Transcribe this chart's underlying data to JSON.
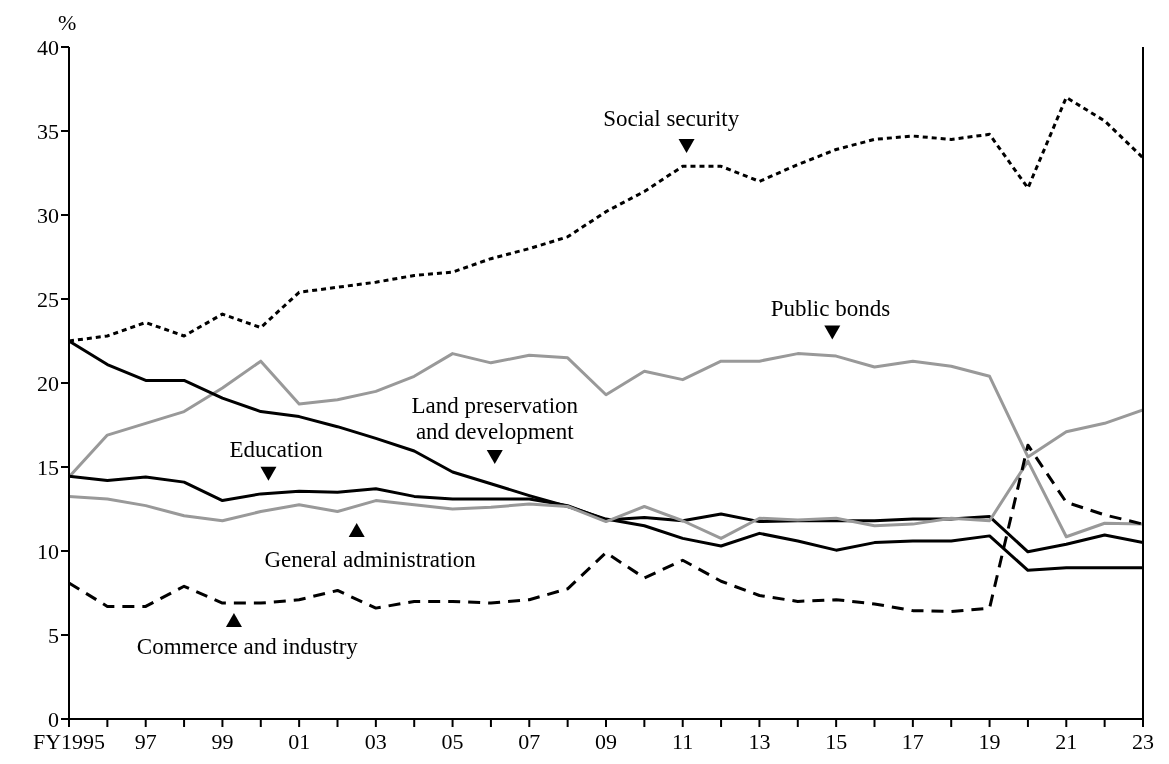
{
  "chart_data": {
    "type": "line",
    "ylabel": "%",
    "marker": "none",
    "grid": false,
    "legend": false,
    "x": [
      1995,
      1996,
      1997,
      1998,
      1999,
      2000,
      2001,
      2002,
      2003,
      2004,
      2005,
      2006,
      2007,
      2008,
      2009,
      2010,
      2011,
      2012,
      2013,
      2014,
      2015,
      2016,
      2017,
      2018,
      2019,
      2020,
      2021,
      2022,
      2023
    ],
    "xlim": [
      1995,
      2023
    ],
    "xticks": [
      {
        "value": 1995,
        "label": "FY1995"
      },
      {
        "value": 1996,
        "label": null
      },
      {
        "value": 1997,
        "label": "97"
      },
      {
        "value": 1998,
        "label": null
      },
      {
        "value": 1999,
        "label": "99"
      },
      {
        "value": 2000,
        "label": null
      },
      {
        "value": 2001,
        "label": "01"
      },
      {
        "value": 2002,
        "label": null
      },
      {
        "value": 2003,
        "label": "03"
      },
      {
        "value": 2004,
        "label": null
      },
      {
        "value": 2005,
        "label": "05"
      },
      {
        "value": 2006,
        "label": null
      },
      {
        "value": 2007,
        "label": "07"
      },
      {
        "value": 2008,
        "label": null
      },
      {
        "value": 2009,
        "label": "09"
      },
      {
        "value": 2010,
        "label": null
      },
      {
        "value": 2011,
        "label": "11"
      },
      {
        "value": 2012,
        "label": null
      },
      {
        "value": 2013,
        "label": "13"
      },
      {
        "value": 2014,
        "label": null
      },
      {
        "value": 2015,
        "label": "15"
      },
      {
        "value": 2016,
        "label": null
      },
      {
        "value": 2017,
        "label": "17"
      },
      {
        "value": 2018,
        "label": null
      },
      {
        "value": 2019,
        "label": "19"
      },
      {
        "value": 2020,
        "label": null
      },
      {
        "value": 2021,
        "label": "21"
      },
      {
        "value": 2022,
        "label": null
      },
      {
        "value": 2023,
        "label": "23"
      }
    ],
    "ylim": [
      0,
      40
    ],
    "yticks": [
      0,
      5,
      10,
      15,
      20,
      25,
      30,
      35,
      40
    ],
    "series": [
      {
        "color": "#000000",
        "line_style": "dotted",
        "values": [
          22.5,
          22.8,
          23.6,
          22.8,
          24.1,
          23.3,
          25.4,
          25.7,
          26.0,
          26.4,
          26.6,
          27.4,
          28.0,
          28.7,
          30.2,
          31.4,
          32.9,
          32.9,
          32.0,
          33.0,
          33.9,
          34.5,
          34.7,
          34.5,
          34.8,
          31.6,
          37.0,
          35.6,
          33.4
        ]
      },
      {
        "color": "#999999",
        "line_style": "solid",
        "values": [
          14.4,
          16.9,
          17.6,
          18.3,
          19.7,
          21.3,
          18.75,
          19.0,
          19.5,
          20.4,
          21.75,
          21.2,
          21.65,
          21.5,
          19.3,
          20.7,
          20.2,
          21.3,
          21.3,
          21.75,
          21.6,
          20.95,
          21.3,
          21.0,
          20.4,
          15.6,
          17.1,
          17.6,
          18.4
        ]
      },
      {
        "color": "#000000",
        "line_style": "solid",
        "values": [
          22.5,
          21.1,
          20.15,
          20.15,
          19.1,
          18.3,
          18.0,
          17.4,
          16.7,
          15.95,
          14.7,
          14.0,
          13.3,
          12.65,
          11.9,
          11.5,
          10.75,
          10.3,
          11.05,
          10.6,
          10.05,
          10.5,
          10.6,
          10.6,
          10.9,
          8.85,
          9.0,
          9.0,
          9.0
        ]
      },
      {
        "color": "#000000",
        "line_style": "solid",
        "values": [
          14.45,
          14.2,
          14.4,
          14.1,
          13.0,
          13.4,
          13.55,
          13.5,
          13.7,
          13.25,
          13.1,
          13.1,
          13.1,
          12.7,
          11.85,
          12.0,
          11.8,
          12.2,
          11.75,
          11.8,
          11.8,
          11.8,
          11.9,
          11.9,
          12.05,
          9.95,
          10.4,
          10.95,
          10.5
        ]
      },
      {
        "color": "#999999",
        "line_style": "solid",
        "values": [
          13.25,
          13.1,
          12.7,
          12.1,
          11.8,
          12.35,
          12.75,
          12.35,
          13.0,
          12.75,
          12.5,
          12.6,
          12.8,
          12.65,
          11.75,
          12.65,
          11.8,
          10.75,
          11.95,
          11.85,
          11.95,
          11.5,
          11.6,
          11.95,
          11.8,
          15.35,
          10.85,
          11.65,
          11.6
        ]
      },
      {
        "color": "#000000",
        "line_style": "dashed",
        "values": [
          8.1,
          6.7,
          6.7,
          7.9,
          6.9,
          6.9,
          7.1,
          7.65,
          6.6,
          7.0,
          7.0,
          6.9,
          7.1,
          7.75,
          9.9,
          8.4,
          9.45,
          8.2,
          7.35,
          7.0,
          7.1,
          6.85,
          6.45,
          6.4,
          6.6,
          16.3,
          12.9,
          12.15,
          11.6
        ]
      }
    ],
    "annotations": [
      "Social security",
      "Public bonds",
      "Land preservation\nand development",
      "Education",
      "General administration",
      "Commerce and industry"
    ]
  }
}
